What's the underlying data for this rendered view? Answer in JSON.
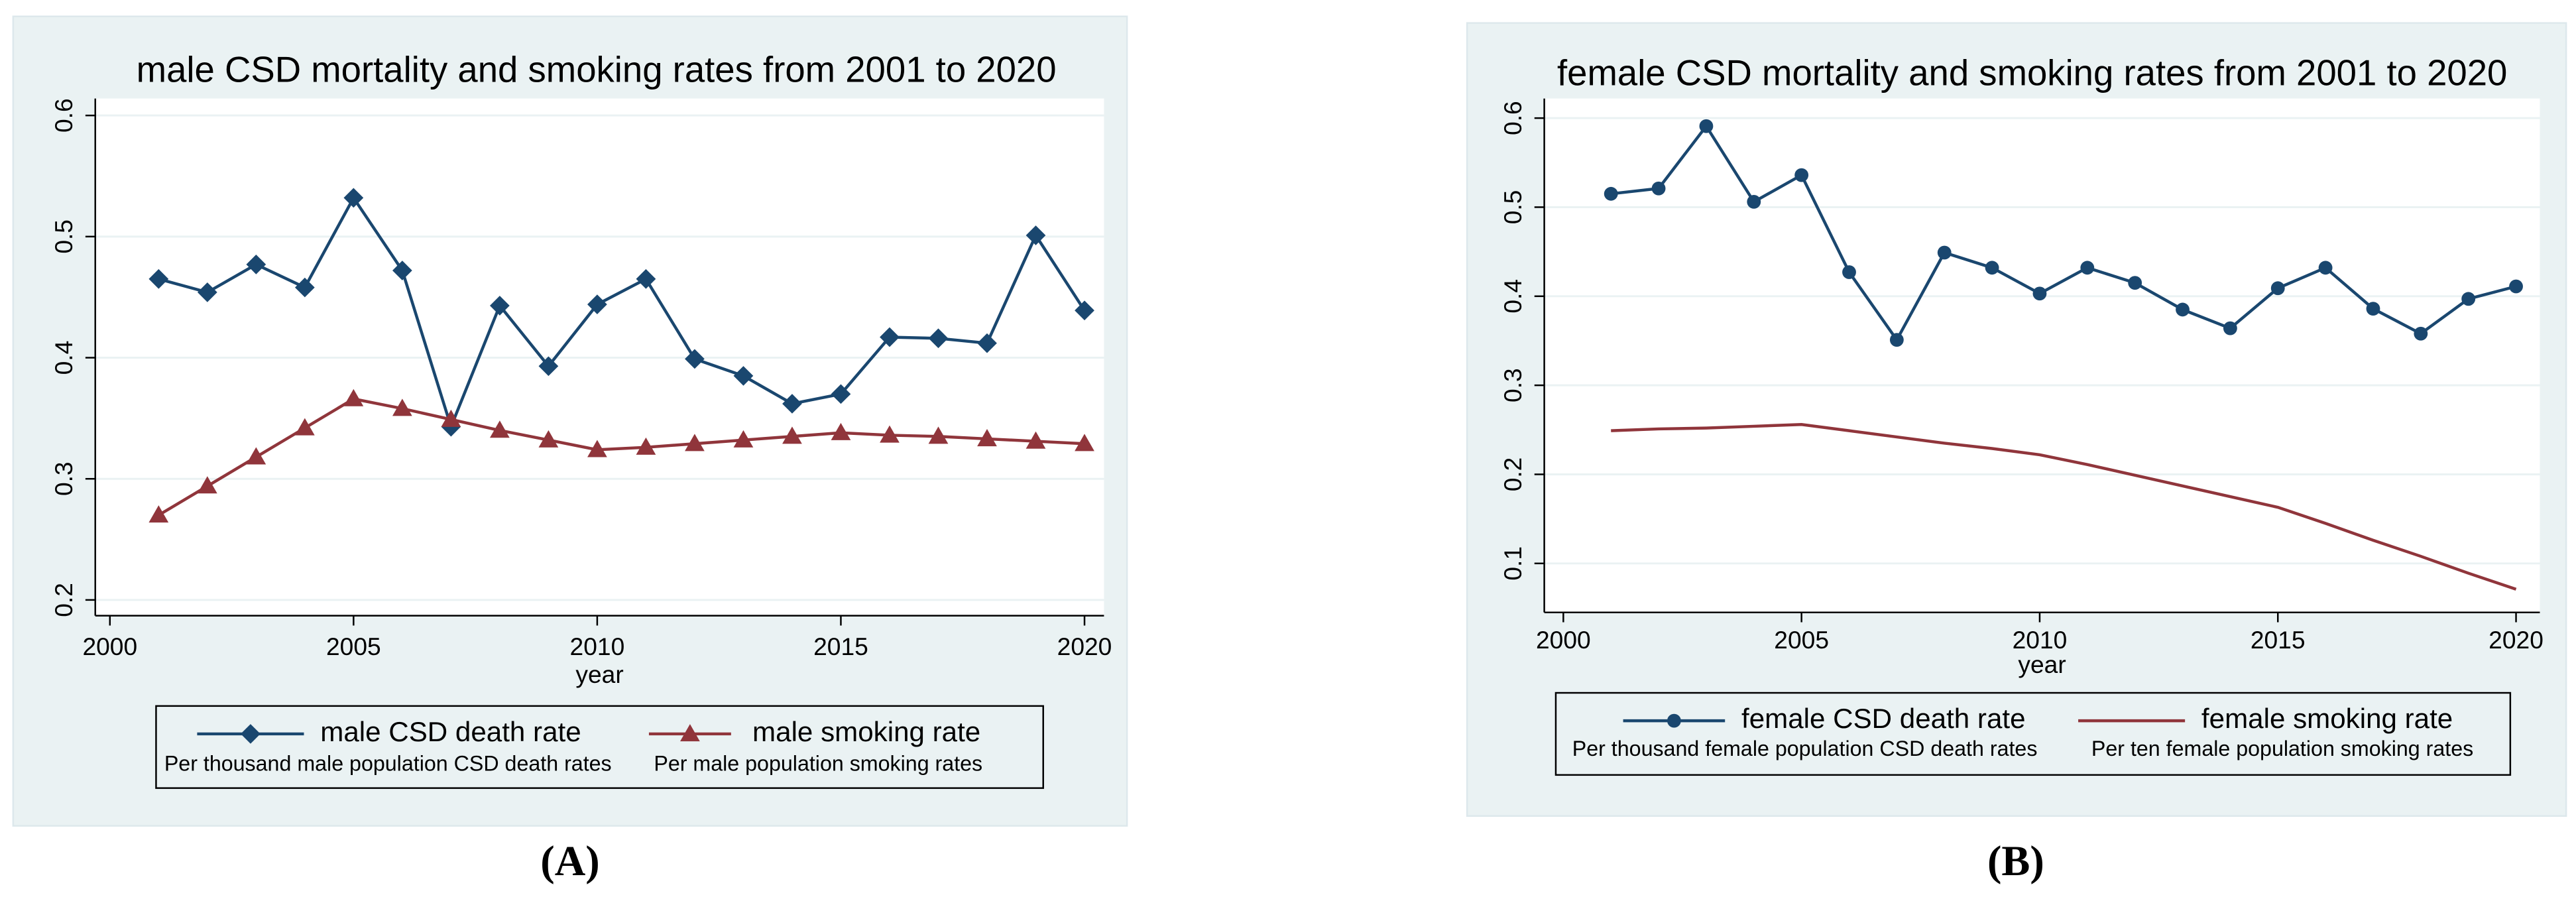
{
  "chart_data": [
    {
      "type": "line",
      "title": "male CSD mortality and smoking rates from 2001 to 2020",
      "x_label": "year",
      "panel_label": "(A)",
      "x": [
        2001,
        2002,
        2003,
        2004,
        2005,
        2006,
        2007,
        2008,
        2009,
        2010,
        2011,
        2012,
        2013,
        2014,
        2015,
        2016,
        2017,
        2018,
        2019,
        2020
      ],
      "xlim": [
        1999.7,
        2020.4
      ],
      "xticks": [
        2000,
        2005,
        2010,
        2015,
        2020
      ],
      "ylim": [
        0.187,
        0.614
      ],
      "yticks": [
        0.2,
        0.3,
        0.4,
        0.5,
        0.6
      ],
      "grid": true,
      "series": [
        {
          "name": "male CSD death rate",
          "note": "Per thousand male population CSD death rates",
          "color": "#1a476f",
          "marker": "diamond",
          "values": [
            0.465,
            0.454,
            0.477,
            0.458,
            0.532,
            0.472,
            0.343,
            0.443,
            0.393,
            0.444,
            0.465,
            0.399,
            0.385,
            0.362,
            0.37,
            0.417,
            0.416,
            0.412,
            0.501,
            0.439
          ]
        },
        {
          "name": "male smoking rate",
          "note": "Per male population smoking rates",
          "color": "#90353b",
          "marker": "triangle",
          "values": [
            0.27,
            0.294,
            0.318,
            0.342,
            0.366,
            0.358,
            0.349,
            0.34,
            0.332,
            0.324,
            0.326,
            0.329,
            0.332,
            0.335,
            0.338,
            0.336,
            0.335,
            0.333,
            0.331,
            0.329
          ]
        }
      ]
    },
    {
      "type": "line",
      "title": "female CSD mortality and smoking rates from 2001 to 2020",
      "x_label": "year",
      "panel_label": "(B)",
      "x": [
        2001,
        2002,
        2003,
        2004,
        2005,
        2006,
        2007,
        2008,
        2009,
        2010,
        2011,
        2012,
        2013,
        2014,
        2015,
        2016,
        2017,
        2018,
        2019,
        2020
      ],
      "xlim": [
        1999.6,
        2020.5
      ],
      "xticks": [
        2000,
        2005,
        2010,
        2015,
        2020
      ],
      "ylim": [
        0.045,
        0.622
      ],
      "yticks": [
        0.1,
        0.2,
        0.3,
        0.4,
        0.5,
        0.6
      ],
      "grid": true,
      "series": [
        {
          "name": "female CSD death rate",
          "note": "Per thousand female population CSD death rates",
          "color": "#1a476f",
          "marker": "circle",
          "values": [
            0.515,
            0.521,
            0.591,
            0.506,
            0.536,
            0.427,
            0.351,
            0.449,
            0.432,
            0.403,
            0.432,
            0.415,
            0.385,
            0.364,
            0.409,
            0.432,
            0.386,
            0.358,
            0.397,
            0.411
          ]
        },
        {
          "name": "female smoking rate",
          "note": "Per ten female population smoking rates",
          "color": "#90353b",
          "marker": "none",
          "values": [
            0.249,
            0.251,
            0.252,
            0.254,
            0.256,
            0.249,
            0.242,
            0.235,
            0.229,
            0.222,
            0.211,
            0.199,
            0.187,
            0.175,
            0.163,
            0.145,
            0.126,
            0.108,
            0.089,
            0.071
          ]
        }
      ]
    }
  ]
}
